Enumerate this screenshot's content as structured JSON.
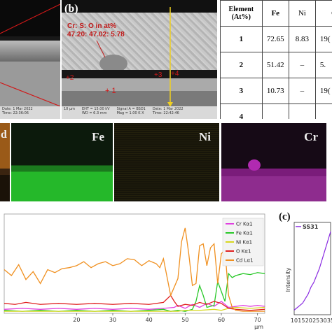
{
  "panel_b": {
    "label": "(b)",
    "annotation_title": "Cr: S: O in at%",
    "annotation_values": "47.20: 47.02: 5.78",
    "points": [
      "+ 1",
      "+2",
      "+3",
      "+4"
    ],
    "info_scale": "10 µm",
    "info_eht": "EHT = 15.00 kV",
    "info_wd": "WD = 6.3 mm",
    "info_signal": "Signal A = BSD1",
    "info_mag": "Mag = 1.00 K X",
    "info_date": "Date: 1 Mar 2022",
    "info_time": "Time: 22:42:46"
  },
  "panel_a_info": {
    "date": "Date: 1 Mar 2022",
    "time": "Time: 22:36:06"
  },
  "table": {
    "headers": [
      "Element (At%)",
      "Fe",
      "Ni",
      "C"
    ],
    "rows": [
      [
        "1",
        "72.65",
        "8.83",
        "19("
      ],
      [
        "2",
        "51.42",
        "–",
        "5."
      ],
      [
        "3",
        "10.73",
        "–",
        "19("
      ],
      [
        "4",
        "",
        "",
        ""
      ]
    ]
  },
  "maps": [
    {
      "label": "d",
      "color": "#b86c1e"
    },
    {
      "label": "Fe",
      "color": "#22c52a"
    },
    {
      "label": "Ni",
      "color": "#a89e2c"
    },
    {
      "label": "Cr",
      "color": "#b41fb4"
    }
  ],
  "chart_data": [
    {
      "type": "line",
      "title": "",
      "xlabel": "µm",
      "ylabel": "",
      "xlim": [
        0,
        72
      ],
      "x_ticks": [
        "20",
        "30",
        "40",
        "50",
        "60",
        "70"
      ],
      "legend_position": "top-right",
      "series": [
        {
          "name": "Cr Kα1",
          "color": "#e040e0",
          "x": [
            0,
            5,
            10,
            15,
            20,
            25,
            30,
            35,
            40,
            44,
            47,
            48,
            50,
            52,
            54,
            56,
            58,
            60,
            62,
            64,
            66,
            68,
            70,
            72
          ],
          "y": [
            4,
            5,
            4,
            5,
            4,
            5,
            4,
            5,
            4,
            5,
            6,
            8,
            5,
            9,
            6,
            10,
            7,
            12,
            6,
            7,
            8,
            7,
            8,
            7
          ]
        },
        {
          "name": "Fe Kα1",
          "color": "#28c828",
          "x": [
            0,
            5,
            10,
            15,
            20,
            25,
            30,
            35,
            40,
            44,
            46,
            48,
            50,
            52,
            53,
            54,
            55,
            56,
            58,
            59,
            60,
            61,
            62,
            63,
            64,
            66,
            68,
            70,
            72
          ],
          "y": [
            3,
            2,
            3,
            2,
            3,
            2,
            3,
            2,
            3,
            4,
            2,
            3,
            2,
            4,
            12,
            28,
            18,
            6,
            8,
            32,
            22,
            12,
            40,
            36,
            38,
            40,
            39,
            41,
            40
          ]
        },
        {
          "name": "Ni Kα1",
          "color": "#d8d820",
          "x": [
            0,
            10,
            20,
            30,
            40,
            46,
            48,
            50,
            54,
            58,
            60,
            62,
            64,
            68,
            72
          ],
          "y": [
            2,
            2,
            2,
            2,
            2,
            2,
            2,
            3,
            3,
            4,
            3,
            5,
            6,
            5,
            6
          ]
        },
        {
          "name": "O Kα1",
          "color": "#e02020",
          "x": [
            0,
            3,
            6,
            10,
            15,
            20,
            25,
            30,
            35,
            40,
            44,
            46,
            47,
            48,
            50,
            52,
            54,
            56,
            58,
            60,
            62,
            64,
            68,
            72
          ],
          "y": [
            10,
            9,
            11,
            9,
            10,
            9,
            10,
            9,
            10,
            9,
            11,
            18,
            12,
            7,
            9,
            8,
            11,
            9,
            12,
            10,
            5,
            4,
            3,
            4
          ]
        },
        {
          "name": "Cd Lα1",
          "color": "#f09020",
          "x": [
            0,
            2,
            4,
            6,
            8,
            10,
            12,
            14,
            16,
            18,
            20,
            22,
            24,
            26,
            28,
            30,
            32,
            34,
            36,
            38,
            40,
            42,
            43,
            44,
            46,
            48,
            49,
            50,
            51,
            52,
            53,
            54,
            55,
            56,
            57,
            58,
            59,
            60,
            61,
            62,
            63,
            64,
            66,
            68,
            70,
            72
          ],
          "y": [
            44,
            38,
            49,
            34,
            42,
            30,
            44,
            41,
            45,
            46,
            48,
            52,
            46,
            50,
            52,
            48,
            50,
            55,
            54,
            48,
            53,
            50,
            46,
            55,
            18,
            35,
            72,
            86,
            60,
            28,
            30,
            68,
            70,
            48,
            66,
            70,
            30,
            60,
            64,
            18,
            6,
            3,
            2,
            2,
            2,
            2
          ]
        }
      ]
    },
    {
      "type": "line",
      "title": "SS31",
      "xlabel": "",
      "ylabel": "Intensity",
      "x_ticks": [
        "10",
        "15",
        "20",
        "25",
        "30",
        "35"
      ],
      "series": [
        {
          "name": "SS31",
          "color": "#8a2be2",
          "x": [
            10,
            12,
            14,
            16,
            18,
            20,
            22,
            24,
            26,
            28,
            30,
            32,
            34,
            36
          ],
          "y": [
            2,
            3,
            4,
            5,
            7,
            9,
            12,
            14,
            17,
            20,
            24,
            28,
            32,
            36
          ]
        }
      ]
    }
  ],
  "panel_c": {
    "label": "(c)"
  }
}
